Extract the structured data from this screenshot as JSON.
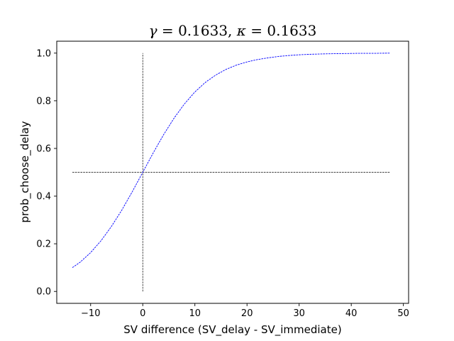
{
  "chart_data": {
    "type": "line",
    "title": {
      "gamma_symbol": "γ",
      "gamma_value": "0.1633",
      "kappa_symbol": "κ",
      "kappa_value": "0.1633"
    },
    "xlabel": "SV difference (SV_delay - SV_immediate)",
    "ylabel": "prob_choose_delay",
    "xlim": [
      -16.5,
      51
    ],
    "ylim": [
      -0.05,
      1.05
    ],
    "x_ticks": [
      -10,
      0,
      10,
      20,
      30,
      40,
      50
    ],
    "x_tick_labels": [
      "−10",
      "0",
      "10",
      "20",
      "30",
      "40",
      "50"
    ],
    "y_ticks": [
      0.0,
      0.2,
      0.4,
      0.6,
      0.8,
      1.0
    ],
    "y_tick_labels": [
      "0.0",
      "0.2",
      "0.4",
      "0.6",
      "0.8",
      "1.0"
    ],
    "grid": false,
    "series": [
      {
        "color": "#0000ff",
        "style": "dashed",
        "x": [
          -13.5,
          -12,
          -10,
          -8,
          -6,
          -4,
          -2,
          0,
          2,
          4,
          6,
          8,
          10,
          12,
          14,
          16,
          18,
          20,
          22,
          24,
          26,
          28,
          30,
          32,
          35,
          38,
          41,
          44,
          47.5
        ],
        "y": [
          0.1,
          0.123,
          0.163,
          0.213,
          0.273,
          0.342,
          0.419,
          0.5,
          0.581,
          0.658,
          0.727,
          0.787,
          0.837,
          0.877,
          0.908,
          0.932,
          0.95,
          0.963,
          0.973,
          0.98,
          0.986,
          0.99,
          0.993,
          0.995,
          0.997,
          0.998,
          0.999,
          0.999,
          1.0
        ]
      }
    ],
    "reference_lines": [
      {
        "orientation": "vertical",
        "x": 0,
        "y_from": 0,
        "y_to": 1,
        "color": "#000000",
        "style": "dashed"
      },
      {
        "orientation": "horizontal",
        "y": 0.5,
        "x_from": -13.5,
        "x_to": 47.5,
        "color": "#000000",
        "style": "dashed"
      }
    ]
  }
}
